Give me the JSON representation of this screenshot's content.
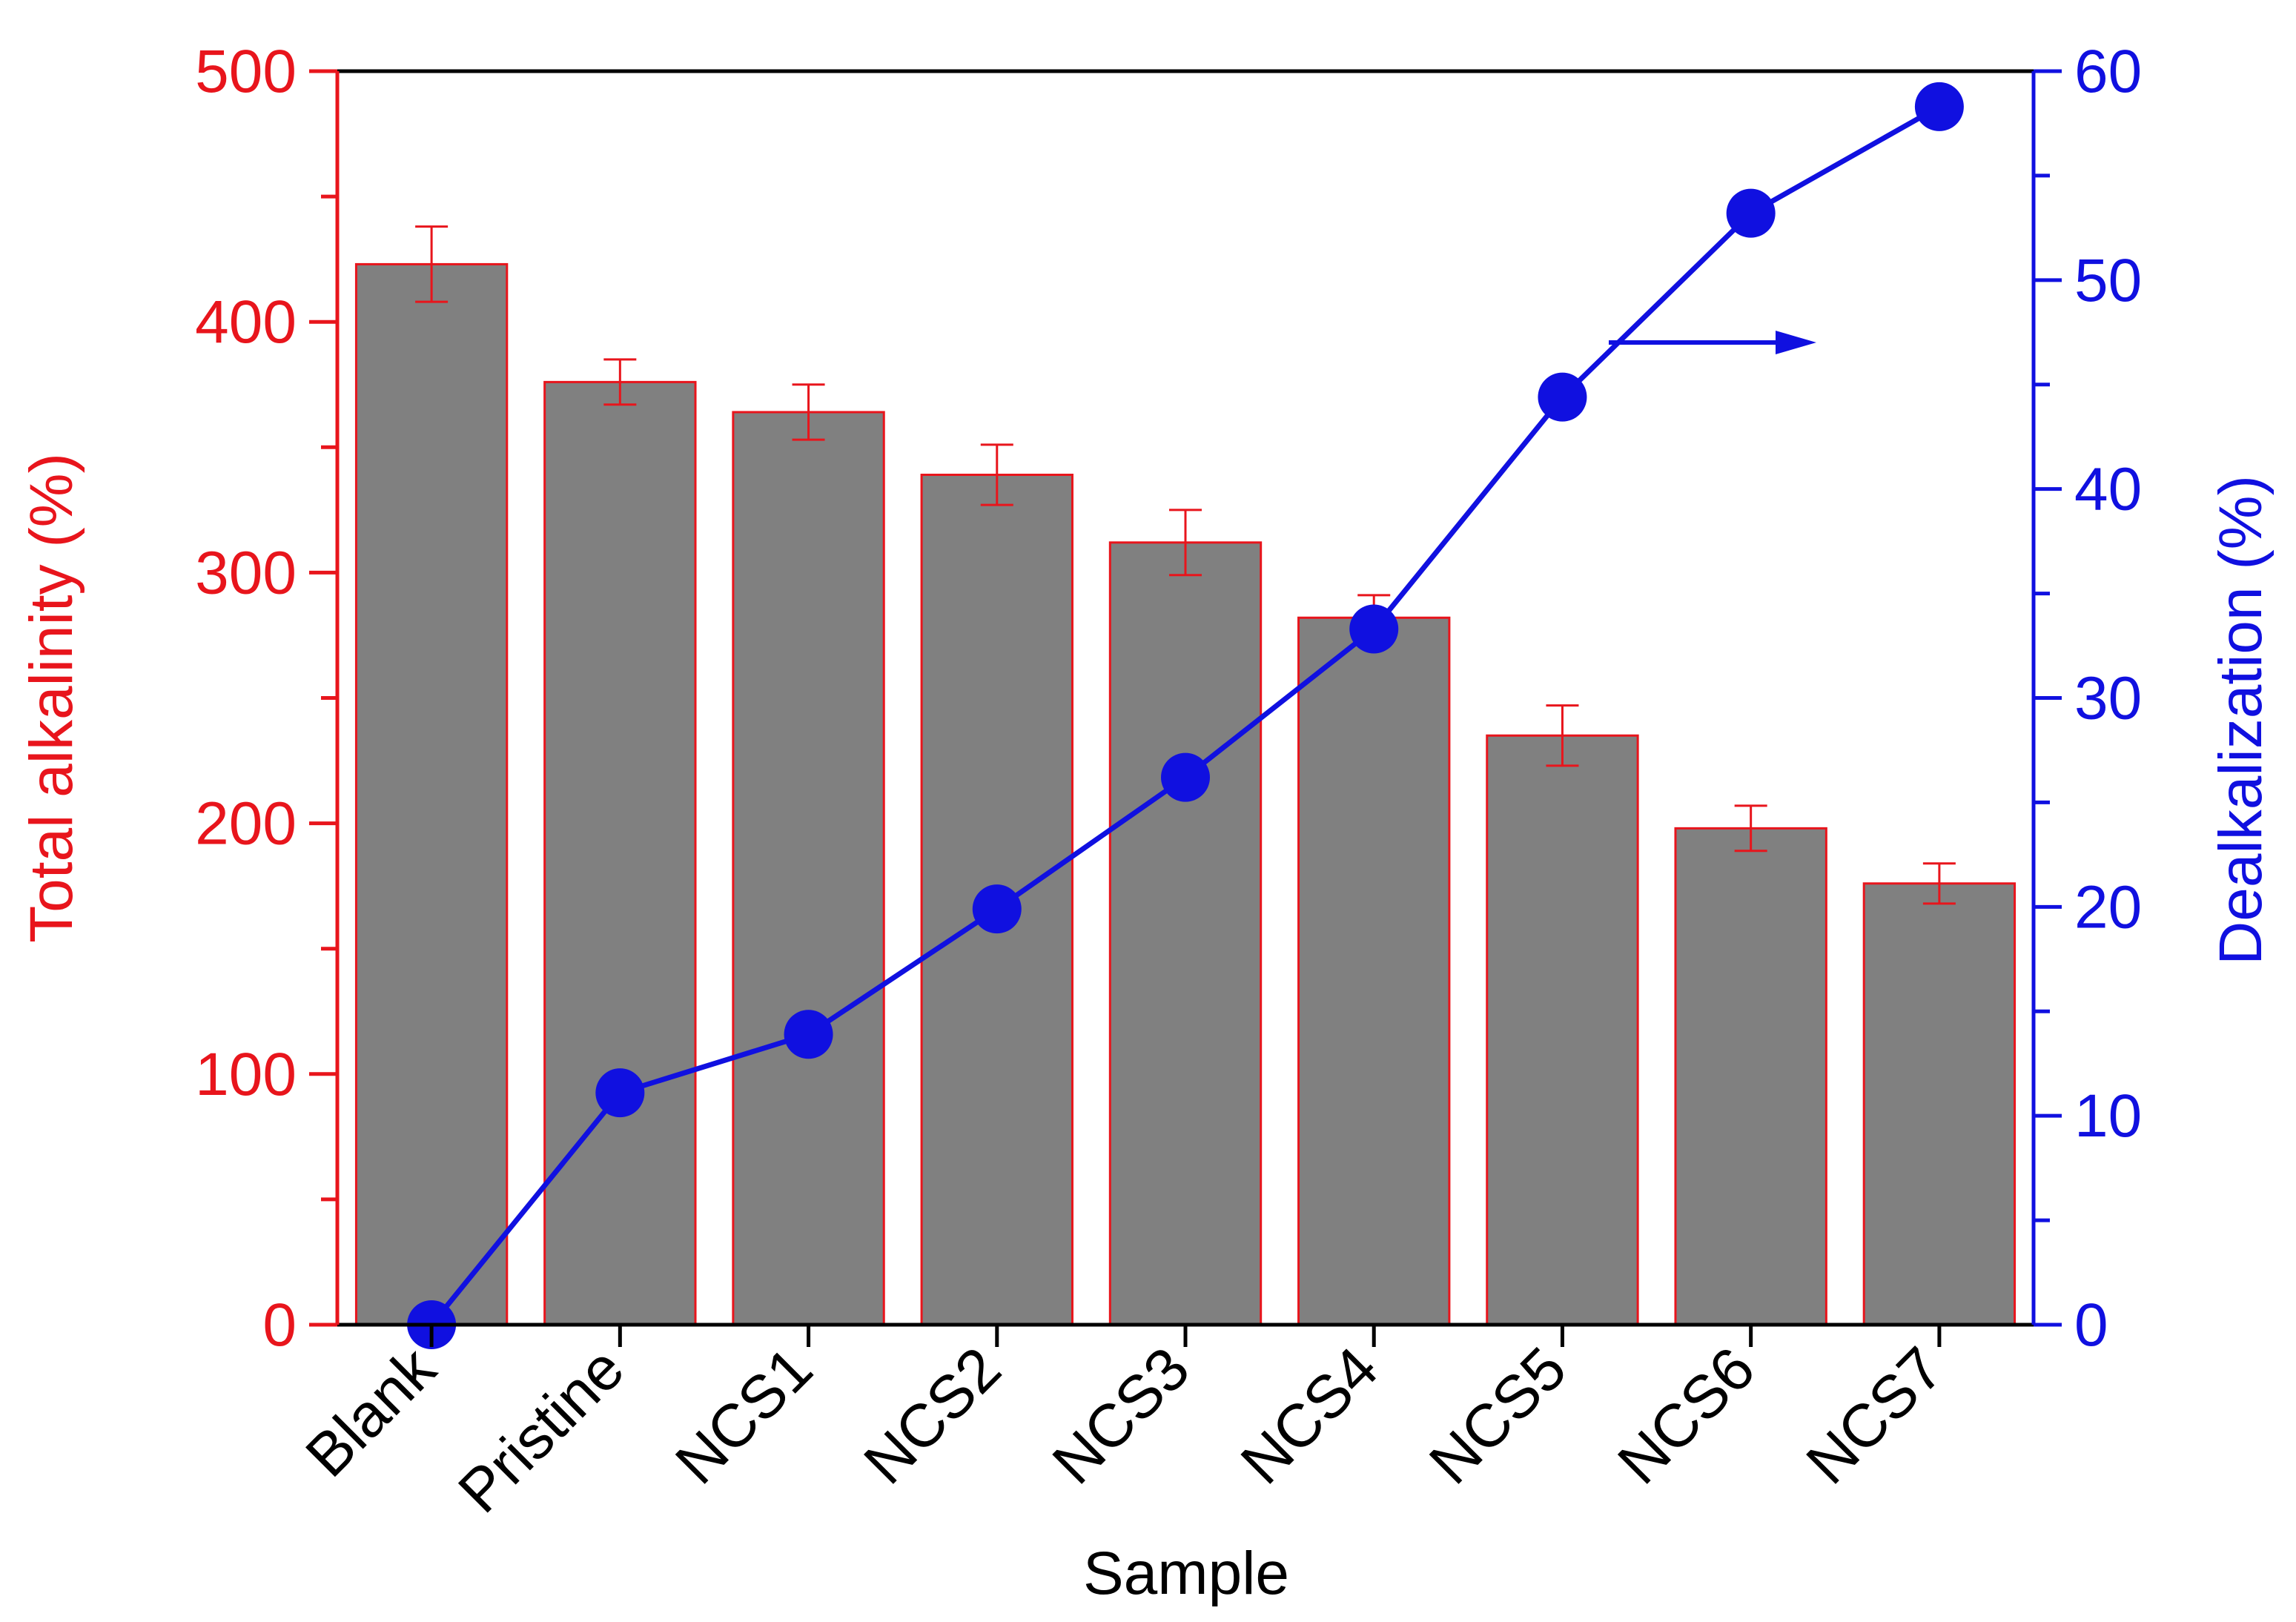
{
  "chart_data": {
    "type": "bar",
    "categories": [
      "Blank",
      "Pristine",
      "NCS1",
      "NCS2",
      "NCS3",
      "NCS4",
      "NCS5",
      "NCS6",
      "NCS7"
    ],
    "xlabel": "Sample",
    "left_axis": {
      "label": "Total alkalinity (%)",
      "ylim": [
        0,
        500
      ],
      "ticks": [
        "0",
        "100",
        "200",
        "300",
        "400",
        "500"
      ],
      "color": "#e8151c"
    },
    "right_axis": {
      "label": "Dealkalization (%)",
      "ylim": [
        0,
        60
      ],
      "ticks": [
        "0",
        "10",
        "20",
        "30",
        "40",
        "50",
        "60"
      ],
      "color": "#1010e0"
    },
    "series": [
      {
        "type": "bar",
        "axis": "left",
        "values": [
          423,
          376,
          364,
          339,
          312,
          282,
          235,
          198,
          176
        ],
        "errors": [
          15,
          9,
          11,
          12,
          13,
          9,
          12,
          9,
          8
        ],
        "fill": "#808080",
        "stroke": "#e8151c"
      },
      {
        "type": "line",
        "axis": "right",
        "values": [
          0,
          11.1,
          13.9,
          19.9,
          26.2,
          33.3,
          44.4,
          53.2,
          58.3
        ],
        "color": "#1010e0"
      }
    ],
    "annotation": {
      "type": "arrow",
      "points_to": "right-axis",
      "color": "#1010e0"
    },
    "grid": false
  }
}
